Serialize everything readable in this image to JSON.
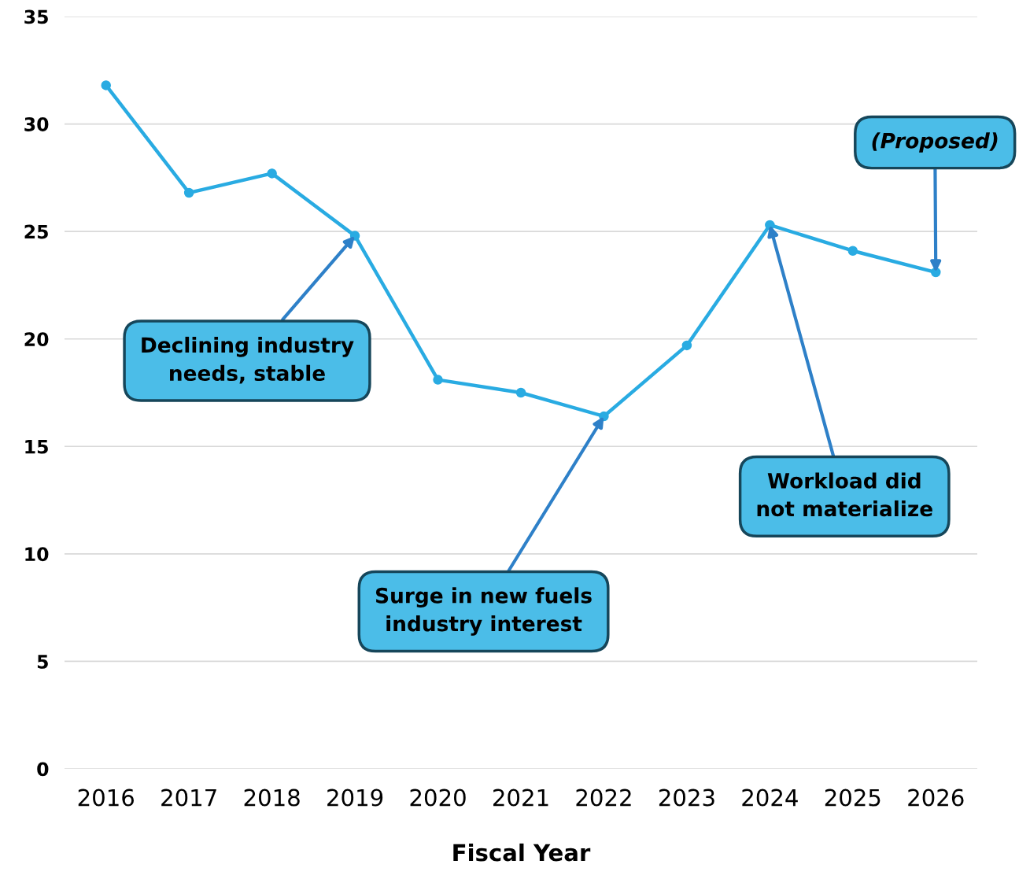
{
  "chart_data": {
    "type": "line",
    "xlabel": "Fiscal Year",
    "categories": [
      "2016",
      "2017",
      "2018",
      "2019",
      "2020",
      "2021",
      "2022",
      "2023",
      "2024",
      "2025",
      "2026"
    ],
    "series": [
      {
        "color": "#29abe2",
        "values": [
          31.8,
          26.8,
          27.7,
          24.8,
          18.1,
          17.5,
          16.4,
          19.7,
          25.3,
          24.1,
          23.1
        ]
      }
    ],
    "ylim": [
      0,
      35
    ],
    "yticks": [
      0,
      5,
      10,
      15,
      20,
      25,
      30,
      35
    ],
    "grid": "y",
    "marker": "circle",
    "line_style": "solid",
    "annotations": [
      {
        "text": "Declining industry\nneeds, stable",
        "x": "2019",
        "y": 24.8
      },
      {
        "text": "Surge in new fuels\nindustry interest",
        "x": "2022",
        "y": 16.4
      },
      {
        "text": "Workload did\nnot materialize",
        "x": "2024",
        "y": 25.3
      },
      {
        "text": "(Proposed)",
        "x": "2026",
        "y": 23.1
      }
    ]
  }
}
